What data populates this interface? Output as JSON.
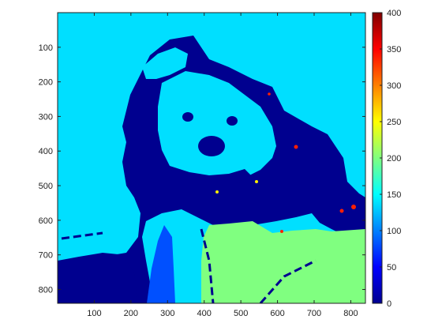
{
  "chart_data": {
    "type": "heatmap",
    "title": "",
    "xlabel": "",
    "ylabel": "",
    "xlim": [
      0,
      840
    ],
    "ylim": [
      0,
      840
    ],
    "y_reversed": true,
    "x_ticks": [
      100,
      200,
      300,
      400,
      500,
      600,
      700,
      800
    ],
    "y_ticks": [
      100,
      200,
      300,
      400,
      500,
      600,
      700,
      800
    ],
    "colormap": "jet",
    "colorbar": {
      "range": [
        0,
        400
      ],
      "ticks": [
        0,
        50,
        100,
        150,
        200,
        250,
        300,
        350,
        400
      ]
    },
    "value_levels": {
      "background": 148,
      "dark_regions": 12,
      "shirt": 205,
      "stripe": 55,
      "highlights": 260,
      "hot_spots": 385
    },
    "image_content": "teddy bear scaled-color image"
  },
  "colors": {
    "background_level": "#00dfff",
    "dark_level": "#00008f",
    "shirt_level": "#80ff80",
    "stripe_level": "#0050ff",
    "highlight_level": "#ffef00",
    "hot_level": "#ff2000"
  }
}
